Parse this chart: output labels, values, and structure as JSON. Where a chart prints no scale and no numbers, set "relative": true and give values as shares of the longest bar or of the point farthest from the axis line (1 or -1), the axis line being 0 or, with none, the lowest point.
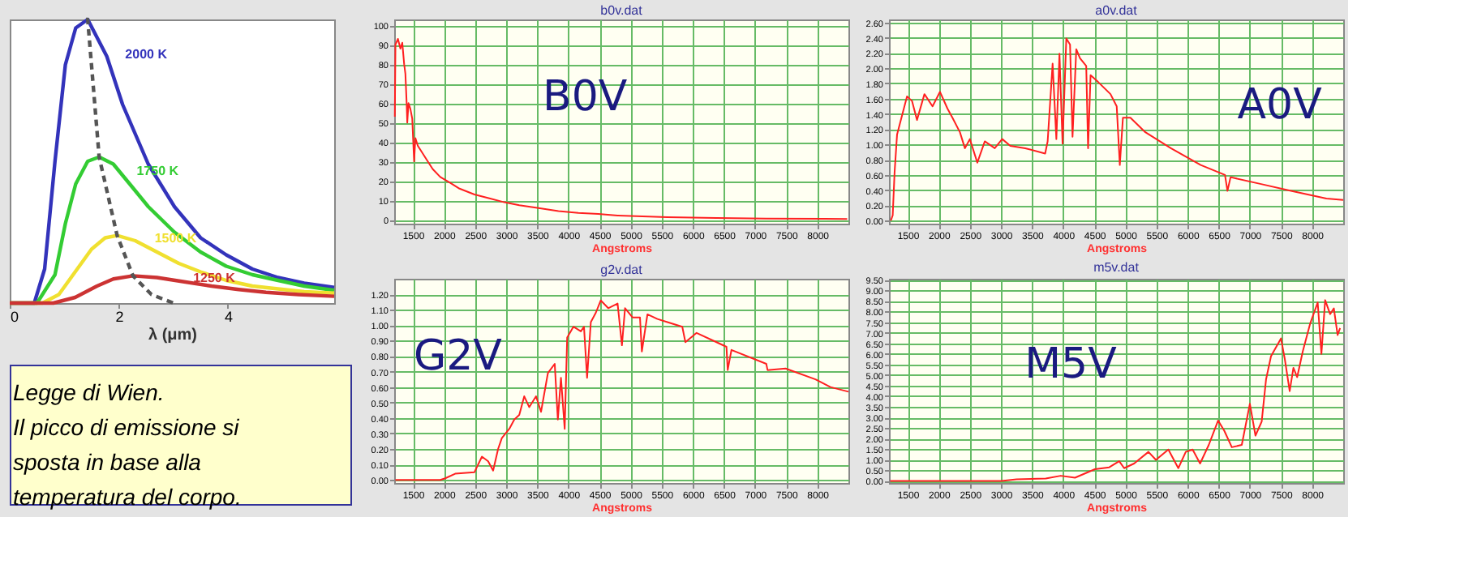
{
  "chart_data": [
    {
      "type": "line",
      "relative": true,
      "xlabel": "λ (μm)",
      "xlim": [
        0,
        5.95
      ],
      "xticks": [
        0,
        2,
        4
      ],
      "grid": false,
      "annotations": [
        "Legge di Wien.",
        "Il picco di emissione si sposta in base alla temperatura del corpo."
      ],
      "series": [
        {
          "name": "2000 K",
          "color": "#3333bb",
          "x": [
            0,
            0.45,
            0.64,
            0.83,
            1.02,
            1.21,
            1.43,
            1.78,
            2.07,
            2.54,
            3.02,
            3.5,
            3.97,
            4.45,
            4.92,
            5.4,
            5.95
          ],
          "values": [
            0,
            0,
            0.12,
            0.5,
            0.84,
            0.97,
            1.0,
            0.87,
            0.7,
            0.49,
            0.34,
            0.23,
            0.17,
            0.12,
            0.09,
            0.07,
            0.055
          ]
        },
        {
          "name": "1750 K",
          "color": "#33cc33",
          "x": [
            0,
            0.5,
            0.83,
            1.02,
            1.21,
            1.43,
            1.64,
            1.9,
            2.2,
            2.54,
            3.02,
            3.5,
            3.97,
            4.45,
            4.92,
            5.4,
            5.95
          ],
          "values": [
            0,
            0,
            0.1,
            0.28,
            0.42,
            0.5,
            0.515,
            0.49,
            0.42,
            0.34,
            0.25,
            0.18,
            0.13,
            0.1,
            0.08,
            0.06,
            0.045
          ]
        },
        {
          "name": "1500 K",
          "color": "#f0e030",
          "x": [
            0,
            0.6,
            0.9,
            1.2,
            1.5,
            1.75,
            1.97,
            2.3,
            2.7,
            3.1,
            3.5,
            3.97,
            4.45,
            4.92,
            5.4,
            5.95
          ],
          "values": [
            0,
            0,
            0.03,
            0.11,
            0.19,
            0.23,
            0.238,
            0.22,
            0.18,
            0.14,
            0.11,
            0.08,
            0.06,
            0.05,
            0.04,
            0.035
          ]
        },
        {
          "name": "1250 K",
          "color": "#cc3333",
          "x": [
            0,
            0.8,
            1.2,
            1.6,
            1.9,
            2.26,
            2.7,
            3.2,
            3.7,
            4.2,
            4.7,
            5.3,
            5.95
          ],
          "values": [
            0,
            0,
            0.02,
            0.06,
            0.085,
            0.096,
            0.09,
            0.075,
            0.06,
            0.048,
            0.038,
            0.03,
            0.024
          ]
        },
        {
          "color": "#555555",
          "line_style": "dashed",
          "x": [
            1.4,
            1.43,
            1.64,
            1.97,
            2.26,
            2.6,
            3.0
          ],
          "values": [
            1.0,
            1.0,
            0.515,
            0.238,
            0.096,
            0.03,
            0
          ]
        }
      ]
    },
    {
      "type": "line",
      "title": "b0v.dat",
      "xlabel": "Angstroms",
      "annotations": [
        "B0V"
      ],
      "grid": true,
      "xlim": [
        1200,
        8500
      ],
      "xticks": [
        1500,
        2000,
        2500,
        3000,
        3500,
        4000,
        4500,
        5000,
        5500,
        6000,
        6500,
        7000,
        7500,
        8000
      ],
      "ylim": [
        -2,
        103
      ],
      "yticks": [
        0,
        10,
        20,
        30,
        40,
        50,
        60,
        70,
        80,
        90,
        100
      ],
      "series": [
        {
          "color": "#ff2020",
          "x": [
            1210,
            1220,
            1260,
            1300,
            1330,
            1360,
            1380,
            1400,
            1410,
            1430,
            1460,
            1490,
            1520,
            1540,
            1580,
            1620,
            1680,
            1740,
            1820,
            1940,
            2100,
            2250,
            2490,
            2730,
            2970,
            3210,
            3520,
            3840,
            4160,
            4480,
            4790,
            5190,
            5590,
            6380,
            7180,
            8480
          ],
          "values": [
            53,
            90,
            93,
            88,
            91,
            80,
            75,
            60,
            50,
            60,
            57,
            52,
            30,
            42,
            38,
            36,
            33,
            30,
            26,
            22,
            19,
            16,
            13,
            11,
            9,
            7.5,
            6,
            4.5,
            3.5,
            3,
            2.2,
            1.7,
            1.3,
            0.9,
            0.6,
            0.4
          ]
        }
      ]
    },
    {
      "type": "line",
      "title": "a0v.dat",
      "xlabel": "Angstroms",
      "annotations": [
        "A0V"
      ],
      "grid": true,
      "xlim": [
        1200,
        8500
      ],
      "xticks": [
        1500,
        2000,
        2500,
        3000,
        3500,
        4000,
        4500,
        5000,
        5500,
        6000,
        6500,
        7000,
        7500,
        8000
      ],
      "ylim": [
        -0.04,
        2.64
      ],
      "yticks": [
        {
          "value": 0,
          "label": "0.00"
        },
        {
          "value": 0.2,
          "label": "0.20"
        },
        {
          "value": 0.4,
          "label": "0.40"
        },
        {
          "value": 0.6,
          "label": "0.60"
        },
        {
          "value": 0.8,
          "label": "0.80"
        },
        {
          "value": 1,
          "label": "1.00"
        },
        {
          "value": 1.2,
          "label": "1.20"
        },
        {
          "value": 1.4,
          "label": "1.40"
        },
        {
          "value": 1.6,
          "label": "1.60"
        },
        {
          "value": 1.8,
          "label": "1.80"
        },
        {
          "value": 2,
          "label": "2.00"
        },
        {
          "value": 2.2,
          "label": "2.20"
        },
        {
          "value": 2.4,
          "label": "2.40"
        },
        {
          "value": 2.6,
          "label": "2.60"
        }
      ],
      "series": [
        {
          "color": "#ff2020",
          "x": [
            1230,
            1260,
            1290,
            1330,
            1410,
            1490,
            1570,
            1650,
            1770,
            1900,
            2020,
            2140,
            2220,
            2340,
            2420,
            2500,
            2620,
            2740,
            2900,
            3020,
            3150,
            3390,
            3710,
            3750,
            3830,
            3890,
            3940,
            3990,
            4050,
            4110,
            4150,
            4210,
            4270,
            4370,
            4400,
            4440,
            4560,
            4760,
            4860,
            4910,
            4960,
            5080,
            5320,
            5730,
            6210,
            6600,
            6640,
            6690,
            7180,
            7660,
            8230,
            8500
          ],
          "values": [
            0,
            0.07,
            0.63,
            1.13,
            1.38,
            1.63,
            1.57,
            1.32,
            1.66,
            1.5,
            1.69,
            1.47,
            1.35,
            1.16,
            0.95,
            1.07,
            0.76,
            1.04,
            0.95,
            1.07,
            0.98,
            0.95,
            0.88,
            1.04,
            2.06,
            1.07,
            2.19,
            1.01,
            2.39,
            2.31,
            1.1,
            2.25,
            2.13,
            2.03,
            0.95,
            1.91,
            1.82,
            1.66,
            1.5,
            0.73,
            1.35,
            1.35,
            1.16,
            0.95,
            0.73,
            0.6,
            0.39,
            0.57,
            0.48,
            0.39,
            0.29,
            0.27
          ]
        }
      ]
    },
    {
      "type": "line",
      "title": "g2v.dat",
      "xlabel": "Angstroms",
      "annotations": [
        "G2V"
      ],
      "grid": true,
      "xlim": [
        1200,
        8500
      ],
      "xticks": [
        1500,
        2000,
        2500,
        3000,
        3500,
        4000,
        4500,
        5000,
        5500,
        6000,
        6500,
        7000,
        7500,
        8000
      ],
      "ylim": [
        -0.02,
        1.3
      ],
      "yticks": [
        {
          "value": 0,
          "label": "0.00"
        },
        {
          "value": 0.1,
          "label": "0.10"
        },
        {
          "value": 0.2,
          "label": "0.20"
        },
        {
          "value": 0.3,
          "label": "0.30"
        },
        {
          "value": 0.4,
          "label": "0.40"
        },
        {
          "value": 0.5,
          "label": "0.50"
        },
        {
          "value": 0.6,
          "label": "0.60"
        },
        {
          "value": 0.7,
          "label": "0.70"
        },
        {
          "value": 0.8,
          "label": "0.80"
        },
        {
          "value": 0.9,
          "label": "0.90"
        },
        {
          "value": 1,
          "label": "1.00"
        },
        {
          "value": 1.1,
          "label": "1.10"
        },
        {
          "value": 1.2,
          "label": "1.20"
        }
      ],
      "series": [
        {
          "color": "#ff2020",
          "x": [
            1220,
            1940,
            2020,
            2180,
            2490,
            2610,
            2710,
            2790,
            2870,
            2930,
            3050,
            3130,
            3210,
            3290,
            3370,
            3480,
            3560,
            3670,
            3780,
            3830,
            3880,
            3940,
            3980,
            4080,
            4200,
            4250,
            4300,
            4360,
            4440,
            4520,
            4640,
            4790,
            4860,
            4910,
            5030,
            5150,
            5180,
            5270,
            5430,
            5590,
            5830,
            5880,
            6060,
            6380,
            6540,
            6560,
            6620,
            7180,
            7200,
            7490,
            7970,
            8210,
            8500
          ],
          "values": [
            0,
            0,
            0.01,
            0.04,
            0.05,
            0.15,
            0.12,
            0.06,
            0.2,
            0.27,
            0.33,
            0.39,
            0.42,
            0.54,
            0.47,
            0.54,
            0.44,
            0.69,
            0.75,
            0.39,
            0.66,
            0.33,
            0.92,
            0.99,
            0.96,
            0.99,
            0.66,
            1.02,
            1.08,
            1.16,
            1.11,
            1.14,
            0.87,
            1.11,
            1.05,
            1.05,
            0.83,
            1.07,
            1.04,
            1.02,
            0.99,
            0.89,
            0.95,
            0.89,
            0.86,
            0.71,
            0.84,
            0.75,
            0.71,
            0.72,
            0.65,
            0.6,
            0.57
          ]
        }
      ]
    },
    {
      "type": "line",
      "title": "m5v.dat",
      "xlabel": "Angstroms",
      "annotations": [
        "M5V"
      ],
      "grid": true,
      "xlim": [
        1200,
        8500
      ],
      "xticks": [
        1500,
        2000,
        2500,
        3000,
        3500,
        4000,
        4500,
        5000,
        5500,
        6000,
        6500,
        7000,
        7500,
        8000
      ],
      "ylim": [
        -0.1,
        9.55
      ],
      "yticks": [
        {
          "value": 0,
          "label": "0.00"
        },
        {
          "value": 0.5,
          "label": "0.50"
        },
        {
          "value": 1,
          "label": "1.00"
        },
        {
          "value": 1.5,
          "label": "1.50"
        },
        {
          "value": 2,
          "label": "2.00"
        },
        {
          "value": 2.5,
          "label": "2.50"
        },
        {
          "value": 3,
          "label": "3.00"
        },
        {
          "value": 3.5,
          "label": "3.50"
        },
        {
          "value": 4,
          "label": "4.00"
        },
        {
          "value": 4.5,
          "label": "4.50"
        },
        {
          "value": 5,
          "label": "5.00"
        },
        {
          "value": 5.5,
          "label": "5.50"
        },
        {
          "value": 6,
          "label": "6.00"
        },
        {
          "value": 6.5,
          "label": "6.50"
        },
        {
          "value": 7,
          "label": "7.00"
        },
        {
          "value": 7.5,
          "label": "7.50"
        },
        {
          "value": 8,
          "label": "8.00"
        },
        {
          "value": 8.5,
          "label": "8.50"
        },
        {
          "value": 9,
          "label": "9.00"
        },
        {
          "value": 9.5,
          "label": "9.50"
        }
      ],
      "series": [
        {
          "color": "#ff2020",
          "x": [
            1220,
            3010,
            3250,
            3720,
            3960,
            4190,
            4510,
            4740,
            4900,
            4980,
            5140,
            5370,
            5490,
            5690,
            5850,
            5970,
            6080,
            6200,
            6340,
            6490,
            6590,
            6710,
            6870,
            7000,
            7090,
            7190,
            7260,
            7340,
            7500,
            7560,
            7640,
            7700,
            7760,
            7850,
            7970,
            8090,
            8150,
            8210,
            8290,
            8350,
            8410,
            8450
          ],
          "values": [
            0,
            0,
            0.07,
            0.11,
            0.24,
            0.15,
            0.55,
            0.64,
            0.93,
            0.6,
            0.82,
            1.37,
            0.99,
            1.48,
            0.6,
            1.37,
            1.48,
            0.82,
            1.7,
            2.85,
            2.36,
            1.59,
            1.7,
            3.64,
            2.14,
            2.8,
            4.79,
            5.89,
            6.73,
            5.78,
            4.24,
            5.34,
            4.9,
            6.11,
            7.44,
            8.43,
            6.0,
            8.54,
            7.88,
            8.15,
            6.89,
            7.22
          ]
        }
      ]
    }
  ]
}
